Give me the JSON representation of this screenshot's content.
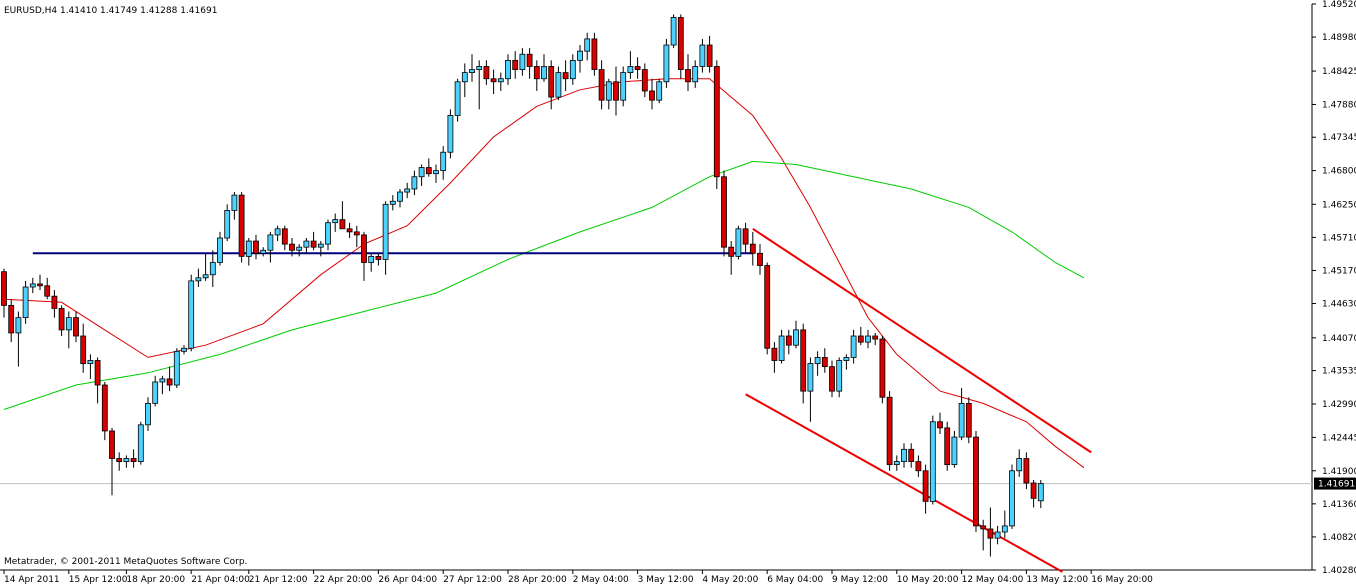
{
  "chart_data": {
    "type": "candlestick",
    "symbol_header": "EURUSD,H4  1.41410 1.41749 1.41288 1.41691",
    "footer": "Metatrader, © 2001-2011 MetaQuotes Software Corp.",
    "current_price_label": "1.41691",
    "current_price": 1.41691,
    "ylim": [
      1.4028,
      1.4952
    ],
    "y_ticks": [
      "1.49520",
      "1.48980",
      "1.48425",
      "1.47880",
      "1.47345",
      "1.46800",
      "1.46250",
      "1.45710",
      "1.45170",
      "1.44630",
      "1.44070",
      "1.43535",
      "1.42990",
      "1.42445",
      "1.41900",
      "1.41360",
      "1.40820",
      "1.40280"
    ],
    "y_tick_values": [
      1.4952,
      1.4898,
      1.48425,
      1.4788,
      1.47345,
      1.468,
      1.4625,
      1.4571,
      1.4517,
      1.4463,
      1.4407,
      1.43535,
      1.4299,
      1.42445,
      1.419,
      1.4136,
      1.4082,
      1.4028
    ],
    "x_ticks": [
      {
        "label": "14 Apr 2011",
        "bar": 0
      },
      {
        "label": "15 Apr 12:00",
        "bar": 9
      },
      {
        "label": "18 Apr 20:00",
        "bar": 17
      },
      {
        "label": "21 Apr 04:00",
        "bar": 26
      },
      {
        "label": "21 Apr 12:00",
        "bar": 34
      },
      {
        "label": "22 Apr 20:00",
        "bar": 43
      },
      {
        "label": "26 Apr 04:00",
        "bar": 52
      },
      {
        "label": "27 Apr 12:00",
        "bar": 61
      },
      {
        "label": "28 Apr 20:00",
        "bar": 70
      },
      {
        "label": "2 May 04:00",
        "bar": 79
      },
      {
        "label": "3 May 12:00",
        "bar": 88
      },
      {
        "label": "4 May 20:00",
        "bar": 97
      },
      {
        "label": "6 May 04:00",
        "bar": 106
      },
      {
        "label": "9 May 12:00",
        "bar": 115
      },
      {
        "label": "10 May 20:00",
        "bar": 124
      },
      {
        "label": "12 May 04:00",
        "bar": 133
      },
      {
        "label": "13 May 12:00",
        "bar": 142
      },
      {
        "label": "16 May 20:00",
        "bar": 151
      }
    ],
    "candles": [
      [
        1.4515,
        1.452,
        1.444,
        1.446
      ],
      [
        1.446,
        1.447,
        1.44,
        1.4415
      ],
      [
        1.4415,
        1.445,
        1.436,
        1.444
      ],
      [
        1.444,
        1.45,
        1.443,
        1.449
      ],
      [
        1.449,
        1.4505,
        1.448,
        1.4495
      ],
      [
        1.4495,
        1.451,
        1.4485,
        1.4492
      ],
      [
        1.4492,
        1.4505,
        1.447,
        1.4475
      ],
      [
        1.4475,
        1.4485,
        1.444,
        1.4455
      ],
      [
        1.4455,
        1.446,
        1.441,
        1.442
      ],
      [
        1.442,
        1.445,
        1.439,
        1.444
      ],
      [
        1.444,
        1.445,
        1.44,
        1.441
      ],
      [
        1.441,
        1.443,
        1.435,
        1.4365
      ],
      [
        1.4365,
        1.438,
        1.434,
        1.437
      ],
      [
        1.437,
        1.4375,
        1.43,
        1.433
      ],
      [
        1.433,
        1.4335,
        1.424,
        1.4255
      ],
      [
        1.4255,
        1.426,
        1.415,
        1.421
      ],
      [
        1.421,
        1.422,
        1.419,
        1.4205
      ],
      [
        1.4205,
        1.4215,
        1.4195,
        1.421
      ],
      [
        1.421,
        1.4225,
        1.4195,
        1.4205
      ],
      [
        1.4205,
        1.427,
        1.42,
        1.4265
      ],
      [
        1.4265,
        1.431,
        1.4255,
        1.43
      ],
      [
        1.43,
        1.4345,
        1.4295,
        1.4335
      ],
      [
        1.4335,
        1.4345,
        1.4315,
        1.434
      ],
      [
        1.434,
        1.436,
        1.432,
        1.433
      ],
      [
        1.433,
        1.439,
        1.4325,
        1.4385
      ],
      [
        1.4385,
        1.4395,
        1.438,
        1.439
      ],
      [
        1.439,
        1.451,
        1.4385,
        1.45
      ],
      [
        1.45,
        1.452,
        1.449,
        1.4505
      ],
      [
        1.4505,
        1.4545,
        1.45,
        1.451
      ],
      [
        1.451,
        1.455,
        1.449,
        1.453
      ],
      [
        1.453,
        1.458,
        1.4525,
        1.457
      ],
      [
        1.457,
        1.4625,
        1.4565,
        1.4615
      ],
      [
        1.4615,
        1.4645,
        1.46,
        1.464
      ],
      [
        1.464,
        1.4645,
        1.453,
        1.454
      ],
      [
        1.454,
        1.457,
        1.4525,
        1.4565
      ],
      [
        1.4565,
        1.4575,
        1.4535,
        1.4545
      ],
      [
        1.4545,
        1.4555,
        1.454,
        1.455
      ],
      [
        1.455,
        1.458,
        1.453,
        1.4575
      ],
      [
        1.4575,
        1.459,
        1.4565,
        1.4585
      ],
      [
        1.4585,
        1.459,
        1.455,
        1.456
      ],
      [
        1.456,
        1.457,
        1.454,
        1.455
      ],
      [
        1.455,
        1.456,
        1.454,
        1.4555
      ],
      [
        1.4555,
        1.457,
        1.4545,
        1.4565
      ],
      [
        1.4565,
        1.458,
        1.455,
        1.4555
      ],
      [
        1.4555,
        1.4565,
        1.454,
        1.456
      ],
      [
        1.456,
        1.46,
        1.455,
        1.4595
      ],
      [
        1.4595,
        1.461,
        1.458,
        1.46
      ],
      [
        1.46,
        1.463,
        1.459,
        1.4585
      ],
      [
        1.4585,
        1.4595,
        1.457,
        1.458
      ],
      [
        1.458,
        1.459,
        1.4555,
        1.4575
      ],
      [
        1.4575,
        1.458,
        1.45,
        1.453
      ],
      [
        1.453,
        1.4545,
        1.4515,
        1.454
      ],
      [
        1.454,
        1.4545,
        1.4525,
        1.4535
      ],
      [
        1.4535,
        1.463,
        1.451,
        1.4625
      ],
      [
        1.4625,
        1.464,
        1.4615,
        1.463
      ],
      [
        1.463,
        1.465,
        1.462,
        1.4645
      ],
      [
        1.4645,
        1.466,
        1.4635,
        1.465
      ],
      [
        1.465,
        1.468,
        1.464,
        1.467
      ],
      [
        1.467,
        1.469,
        1.4655,
        1.4685
      ],
      [
        1.4685,
        1.47,
        1.467,
        1.4675
      ],
      [
        1.4675,
        1.469,
        1.466,
        1.468
      ],
      [
        1.468,
        1.472,
        1.4665,
        1.471
      ],
      [
        1.471,
        1.478,
        1.47,
        1.477
      ],
      [
        1.477,
        1.483,
        1.476,
        1.4825
      ],
      [
        1.4825,
        1.4855,
        1.48,
        1.484
      ],
      [
        1.484,
        1.487,
        1.4825,
        1.4845
      ],
      [
        1.4845,
        1.486,
        1.478,
        1.485
      ],
      [
        1.485,
        1.486,
        1.482,
        1.483
      ],
      [
        1.483,
        1.4845,
        1.4805,
        1.4825
      ],
      [
        1.4825,
        1.484,
        1.481,
        1.483
      ],
      [
        1.483,
        1.487,
        1.482,
        1.486
      ],
      [
        1.486,
        1.4875,
        1.483,
        1.4845
      ],
      [
        1.4845,
        1.488,
        1.4835,
        1.487
      ],
      [
        1.487,
        1.488,
        1.483,
        1.485
      ],
      [
        1.485,
        1.486,
        1.481,
        1.483
      ],
      [
        1.483,
        1.487,
        1.4825,
        1.485
      ],
      [
        1.485,
        1.486,
        1.478,
        1.48
      ],
      [
        1.48,
        1.485,
        1.4795,
        1.484
      ],
      [
        1.484,
        1.486,
        1.481,
        1.483
      ],
      [
        1.483,
        1.487,
        1.482,
        1.486
      ],
      [
        1.486,
        1.4885,
        1.484,
        1.4875
      ],
      [
        1.4875,
        1.4905,
        1.486,
        1.4895
      ],
      [
        1.4895,
        1.4905,
        1.4835,
        1.4845
      ],
      [
        1.4845,
        1.486,
        1.478,
        1.4795
      ],
      [
        1.4795,
        1.483,
        1.478,
        1.4825
      ],
      [
        1.4825,
        1.485,
        1.477,
        1.4795
      ],
      [
        1.4795,
        1.485,
        1.4785,
        1.484
      ],
      [
        1.484,
        1.4875,
        1.483,
        1.485
      ],
      [
        1.485,
        1.4865,
        1.483,
        1.4845
      ],
      [
        1.4845,
        1.4855,
        1.48,
        1.481
      ],
      [
        1.481,
        1.483,
        1.478,
        1.4795
      ],
      [
        1.4795,
        1.483,
        1.479,
        1.4825
      ],
      [
        1.4825,
        1.4895,
        1.4815,
        1.4885
      ],
      [
        1.4885,
        1.4935,
        1.488,
        1.493
      ],
      [
        1.493,
        1.4935,
        1.483,
        1.4845
      ],
      [
        1.4845,
        1.487,
        1.481,
        1.4825
      ],
      [
        1.4825,
        1.486,
        1.4815,
        1.485
      ],
      [
        1.485,
        1.4895,
        1.484,
        1.4885
      ],
      [
        1.4885,
        1.49,
        1.484,
        1.485
      ],
      [
        1.485,
        1.486,
        1.465,
        1.467
      ],
      [
        1.467,
        1.468,
        1.454,
        1.4555
      ],
      [
        1.4555,
        1.4565,
        1.451,
        1.454
      ],
      [
        1.454,
        1.459,
        1.4535,
        1.4585
      ],
      [
        1.4585,
        1.4595,
        1.4545,
        1.456
      ],
      [
        1.456,
        1.458,
        1.4525,
        1.4545
      ],
      [
        1.4545,
        1.456,
        1.451,
        1.4525
      ],
      [
        1.4525,
        1.453,
        1.438,
        1.439
      ],
      [
        1.439,
        1.44,
        1.435,
        1.437
      ],
      [
        1.437,
        1.442,
        1.4365,
        1.441
      ],
      [
        1.441,
        1.442,
        1.438,
        1.4395
      ],
      [
        1.4395,
        1.4435,
        1.439,
        1.442
      ],
      [
        1.442,
        1.443,
        1.43,
        1.432
      ],
      [
        1.432,
        1.4375,
        1.427,
        1.4365
      ],
      [
        1.4365,
        1.4385,
        1.4345,
        1.4375
      ],
      [
        1.4375,
        1.439,
        1.435,
        1.436
      ],
      [
        1.436,
        1.437,
        1.431,
        1.432
      ],
      [
        1.432,
        1.4375,
        1.431,
        1.437
      ],
      [
        1.437,
        1.438,
        1.4355,
        1.4375
      ],
      [
        1.4375,
        1.442,
        1.4365,
        1.441
      ],
      [
        1.441,
        1.4425,
        1.4395,
        1.44
      ],
      [
        1.44,
        1.442,
        1.439,
        1.441
      ],
      [
        1.441,
        1.4415,
        1.4395,
        1.4405
      ],
      [
        1.4405,
        1.441,
        1.43,
        1.431
      ],
      [
        1.431,
        1.432,
        1.419,
        1.42
      ],
      [
        1.42,
        1.4215,
        1.419,
        1.4205
      ],
      [
        1.4205,
        1.4235,
        1.4195,
        1.4225
      ],
      [
        1.4225,
        1.4235,
        1.4195,
        1.4205
      ],
      [
        1.4205,
        1.4215,
        1.418,
        1.419
      ],
      [
        1.419,
        1.42,
        1.412,
        1.414
      ],
      [
        1.414,
        1.428,
        1.4135,
        1.427
      ],
      [
        1.427,
        1.4285,
        1.425,
        1.426
      ],
      [
        1.426,
        1.427,
        1.419,
        1.42
      ],
      [
        1.42,
        1.4255,
        1.4195,
        1.4245
      ],
      [
        1.4245,
        1.4325,
        1.424,
        1.43
      ],
      [
        1.43,
        1.431,
        1.4235,
        1.4245
      ],
      [
        1.4245,
        1.4255,
        1.409,
        1.41
      ],
      [
        1.41,
        1.411,
        1.406,
        1.4095
      ],
      [
        1.4095,
        1.413,
        1.405,
        1.408
      ],
      [
        1.408,
        1.41,
        1.407,
        1.409
      ],
      [
        1.409,
        1.4125,
        1.408,
        1.41
      ],
      [
        1.41,
        1.42,
        1.4095,
        1.419
      ],
      [
        1.419,
        1.4225,
        1.418,
        1.421
      ],
      [
        1.421,
        1.422,
        1.416,
        1.417
      ],
      [
        1.417,
        1.4175,
        1.413,
        1.4145
      ],
      [
        1.4141,
        1.4175,
        1.4129,
        1.4169
      ]
    ],
    "moving_averages": [
      {
        "color": "#dd0000",
        "points": [
          [
            0,
            1.447
          ],
          [
            8,
            1.4465
          ],
          [
            14,
            1.442
          ],
          [
            20,
            1.4375
          ],
          [
            28,
            1.4395
          ],
          [
            36,
            1.443
          ],
          [
            44,
            1.451
          ],
          [
            50,
            1.456
          ],
          [
            56,
            1.459
          ],
          [
            62,
            1.466
          ],
          [
            68,
            1.4735
          ],
          [
            74,
            1.4785
          ],
          [
            80,
            1.4812
          ],
          [
            86,
            1.4825
          ],
          [
            92,
            1.483
          ],
          [
            98,
            1.483
          ],
          [
            104,
            1.477
          ],
          [
            108,
            1.47
          ],
          [
            112,
            1.462
          ],
          [
            116,
            1.453
          ],
          [
            120,
            1.444
          ],
          [
            124,
            1.438
          ],
          [
            130,
            1.432
          ],
          [
            136,
            1.43
          ],
          [
            142,
            1.427
          ],
          [
            146,
            1.423
          ],
          [
            150,
            1.4195
          ]
        ]
      },
      {
        "color": "#00cc00",
        "points": [
          [
            0,
            1.429
          ],
          [
            10,
            1.433
          ],
          [
            20,
            1.435
          ],
          [
            30,
            1.438
          ],
          [
            40,
            1.442
          ],
          [
            50,
            1.445
          ],
          [
            60,
            1.448
          ],
          [
            70,
            1.4535
          ],
          [
            80,
            1.458
          ],
          [
            90,
            1.462
          ],
          [
            98,
            1.467
          ],
          [
            104,
            1.4695
          ],
          [
            110,
            1.469
          ],
          [
            118,
            1.467
          ],
          [
            126,
            1.465
          ],
          [
            134,
            1.462
          ],
          [
            140,
            1.458
          ],
          [
            146,
            1.453
          ],
          [
            150,
            1.4505
          ]
        ]
      }
    ],
    "horizontal_line": {
      "price": 1.4545,
      "from_bar": 4,
      "to_bar": 104,
      "color": "#000080"
    },
    "channel_lines": [
      {
        "from": [
          104,
          1.4585
        ],
        "to": [
          151,
          1.422
        ],
        "color": "#ee0000"
      },
      {
        "from": [
          103,
          1.4315
        ],
        "to": [
          147,
          1.4025
        ],
        "color": "#ee0000"
      }
    ]
  }
}
